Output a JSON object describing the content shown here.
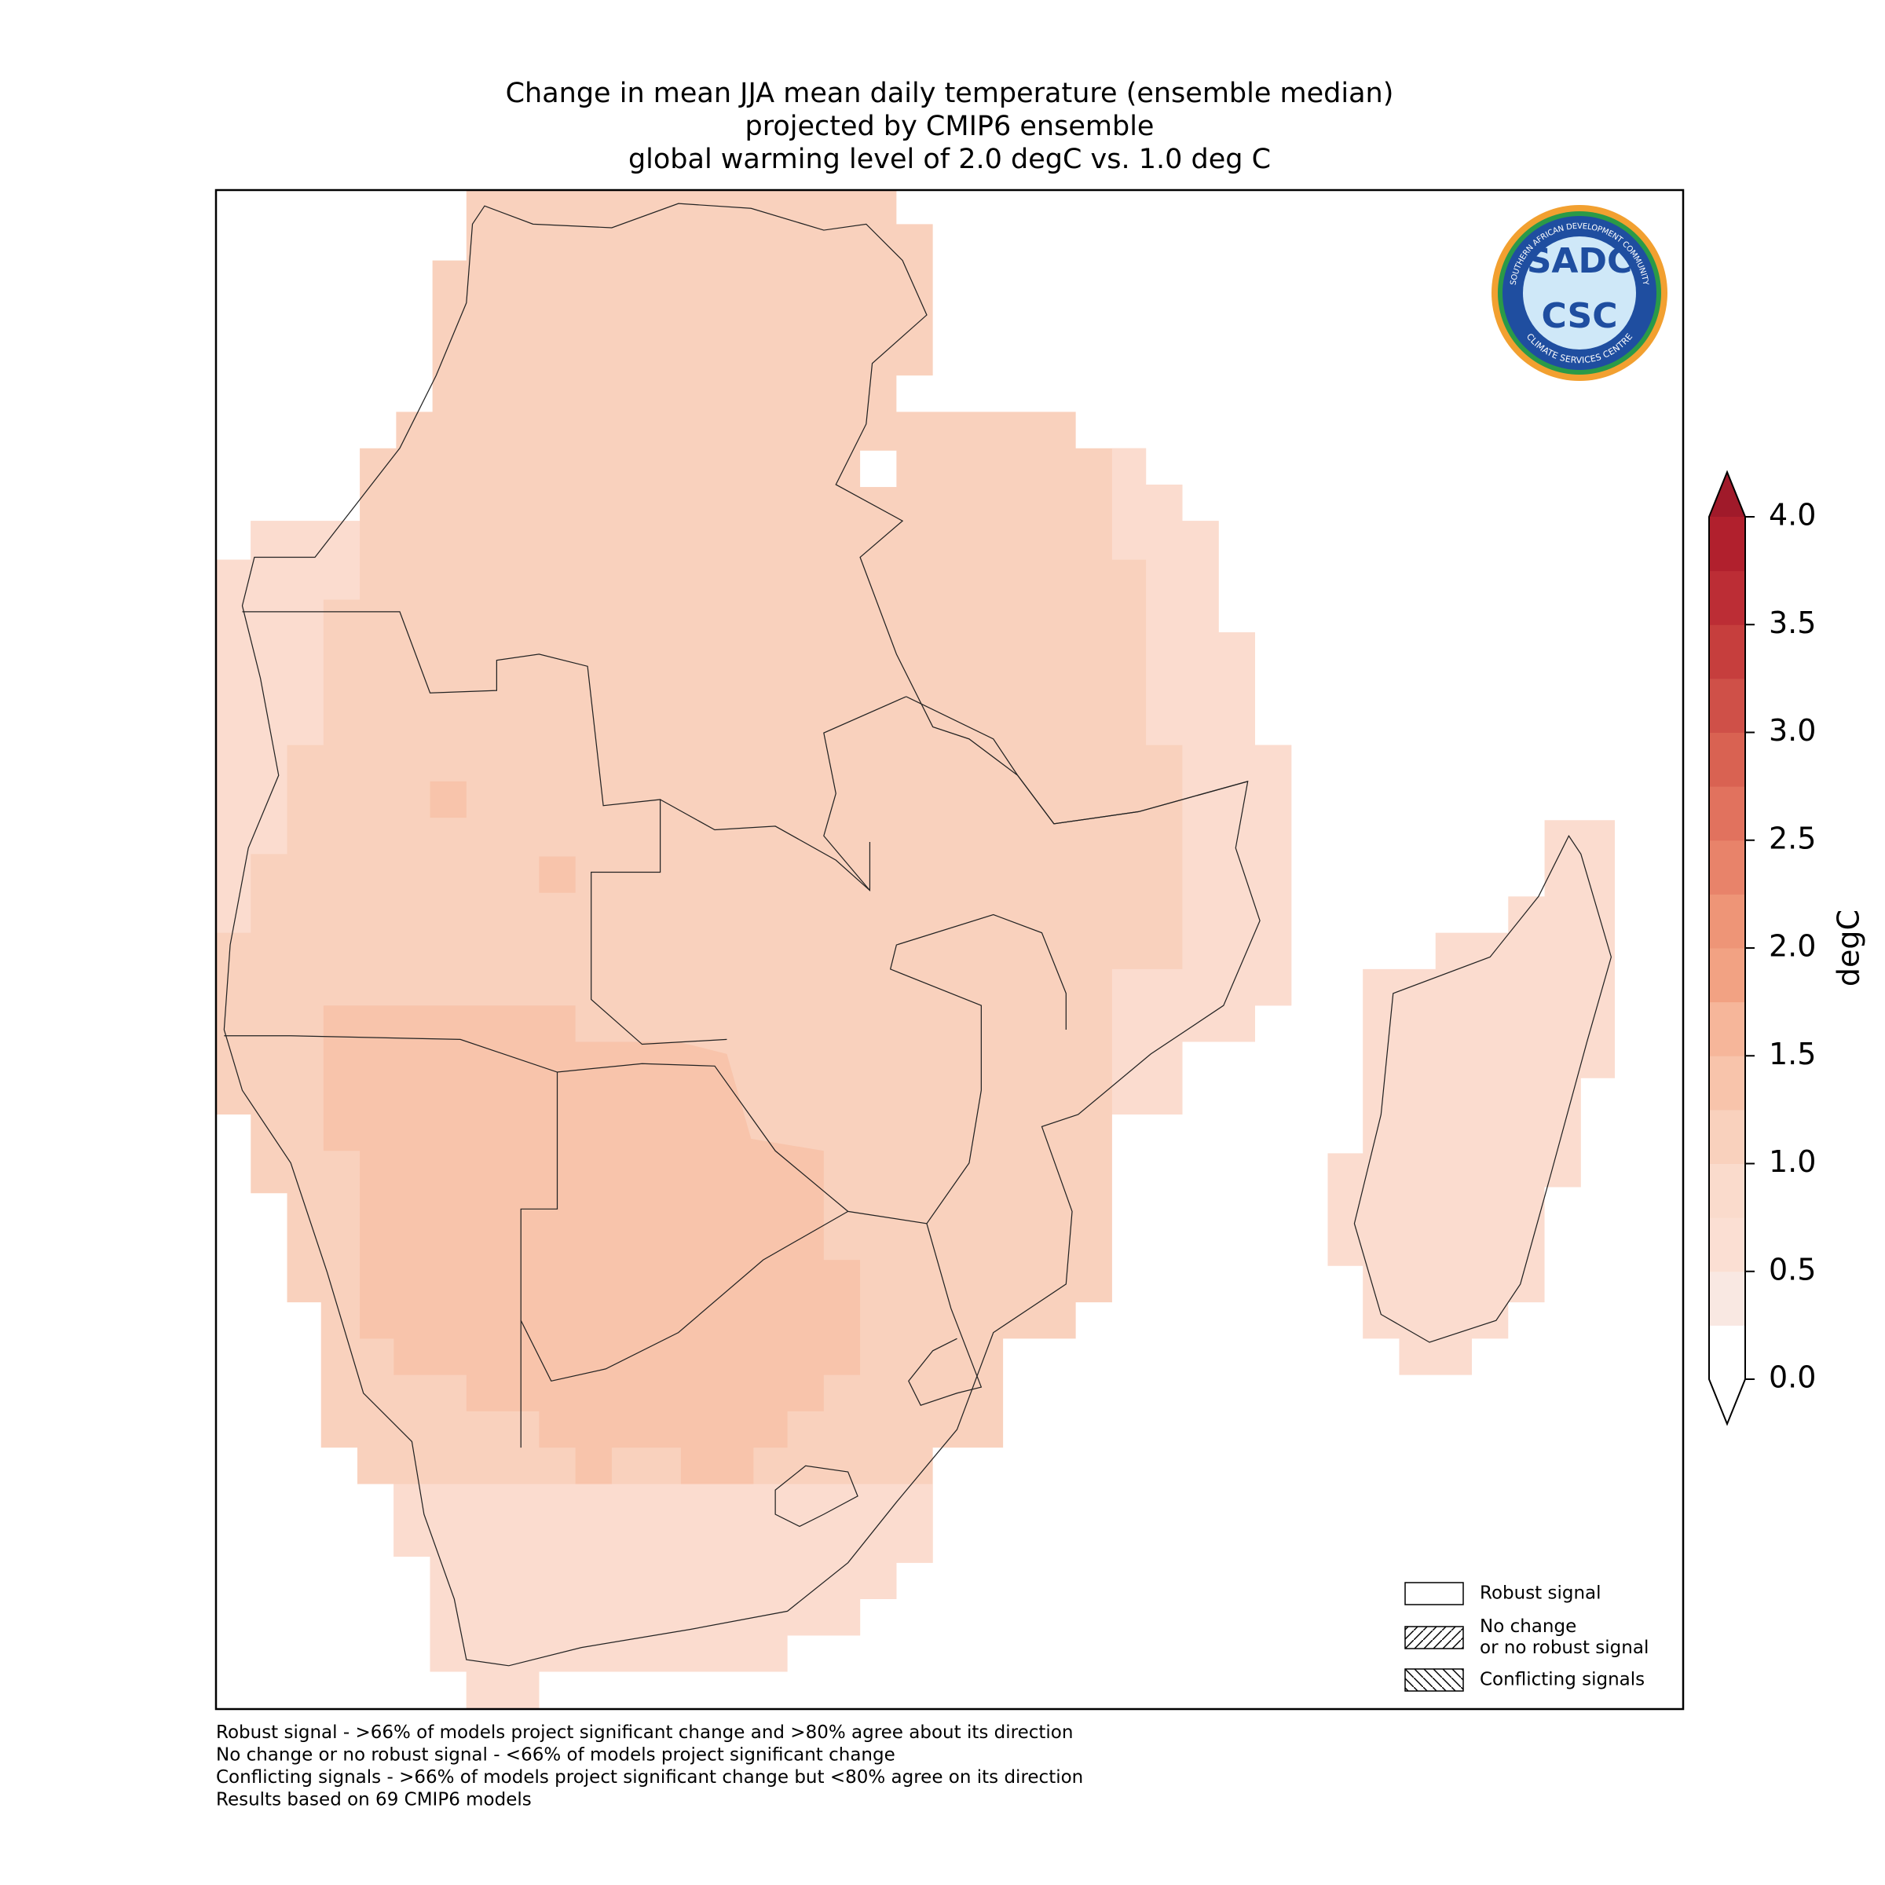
{
  "title": [
    "Change in mean JJA mean daily temperature (ensemble median)",
    "projected by CMIP6 ensemble",
    "global warming level of 2.0 degC vs. 1.0 deg C"
  ],
  "logo": {
    "top": "SADC",
    "bottom": "CSC",
    "ring_top": "SOUTHERN AFRICAN DEVELOPMENT COMMUNITY",
    "ring_bottom": "CLIMATE SERVICES CENTRE"
  },
  "colorbar": {
    "label": "degC",
    "lim": [
      0,
      4
    ],
    "extend": "both",
    "ticks": [
      {
        "value": 0,
        "label": "0.0"
      },
      0.5,
      {
        "value": 1,
        "label": "1.0"
      },
      1.5,
      {
        "value": 2,
        "label": "2.0"
      },
      2.5,
      {
        "value": 3,
        "label": "3.0"
      },
      3.5,
      {
        "value": 4,
        "label": "4.0"
      }
    ],
    "colors": [
      "#ffffff",
      "#f9e8e2",
      "#fbdfd3",
      "#fadbcc",
      "#f9d1bd",
      "#f8c4ab",
      "#f6b69a",
      "#f2a283",
      "#ee9577",
      "#e8836a",
      "#e1725e",
      "#d96252",
      "#cf5048",
      "#c63e3d",
      "#bc2d35",
      "#b1202d"
    ],
    "over_color": "#a01a2a",
    "under_color": "#ffffff"
  },
  "legend": [
    [
      "Robust signal"
    ],
    [
      "No change",
      "or no robust signal"
    ],
    [
      "Conflicting signals"
    ]
  ],
  "footnotes": [
    "Robust signal - >66% of models project significant change and >80% agree about its direction",
    "No change or no robust signal - <66% of models project significant change",
    "Conflicting signals - >66% of models project significant change but <80% agree on its direction",
    "Results based on 69 CMIP6 models"
  ]
}
